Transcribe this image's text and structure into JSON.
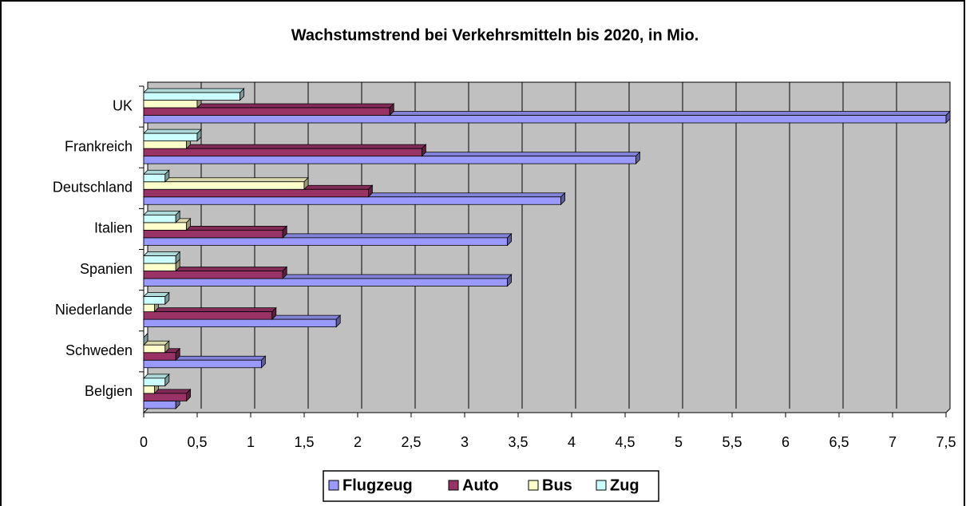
{
  "chart_data": {
    "type": "bar",
    "orientation": "horizontal",
    "title": "Wachstumstrend bei Verkehrsmitteln bis 2020, in Mio.",
    "categories": [
      "UK",
      "Frankreich",
      "Deutschland",
      "Italien",
      "Spanien",
      "Niederlande",
      "Schweden",
      "Belgien"
    ],
    "series": [
      {
        "name": "Flugzeug",
        "color": "#9999ff",
        "values": [
          7.5,
          4.6,
          3.9,
          3.4,
          3.4,
          1.8,
          1.1,
          0.3
        ]
      },
      {
        "name": "Auto",
        "color": "#993366",
        "values": [
          2.3,
          2.6,
          2.1,
          1.3,
          1.3,
          1.2,
          0.3,
          0.4
        ]
      },
      {
        "name": "Bus",
        "color": "#ffffcc",
        "values": [
          0.5,
          0.4,
          1.5,
          0.4,
          0.3,
          0.1,
          0.2,
          0.1
        ]
      },
      {
        "name": "Zug",
        "color": "#ccffff",
        "values": [
          0.9,
          0.5,
          0.2,
          0.3,
          0.3,
          0.2,
          0,
          0.2
        ]
      }
    ],
    "xlim": [
      0,
      7.5
    ],
    "xticks": [
      0,
      {
        "value": 0.5,
        "label": "0,5"
      },
      1,
      {
        "value": 1.5,
        "label": "1,5"
      },
      2,
      {
        "value": 2.5,
        "label": "2,5"
      },
      3,
      {
        "value": 3.5,
        "label": "3,5"
      },
      4,
      {
        "value": 4.5,
        "label": "4,5"
      },
      5,
      {
        "value": 5.5,
        "label": "5,5"
      },
      6,
      {
        "value": 6.5,
        "label": "6,5"
      },
      7,
      {
        "value": 7.5,
        "label": "7,5"
      }
    ],
    "grid": true,
    "legend": "bottom"
  }
}
